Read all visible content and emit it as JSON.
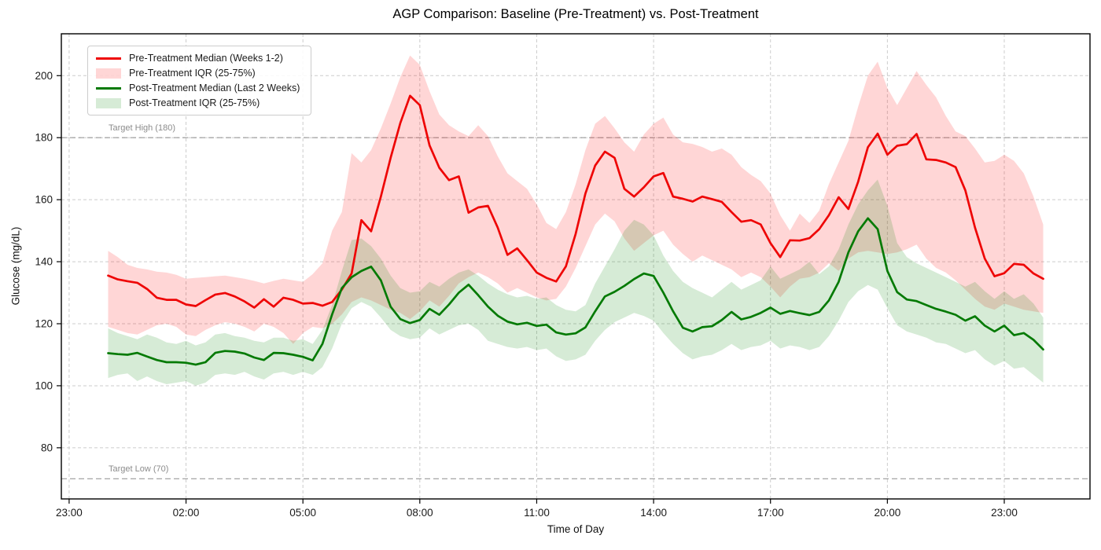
{
  "chart_data": {
    "type": "line",
    "subtype": "median-lines-with-iqr-bands",
    "title": "AGP Comparison: Baseline (Pre-Treatment) vs. Post-Treatment",
    "xlabel": "Time of Day",
    "ylabel": "Glucose (mg/dL)",
    "x_tick_labels": [
      "23:00",
      "02:00",
      "05:00",
      "08:00",
      "11:00",
      "14:00",
      "17:00",
      "20:00",
      "23:00"
    ],
    "x_tick_hours": [
      -1,
      2,
      5,
      8,
      11,
      14,
      17,
      20,
      23
    ],
    "y_ticks": [
      80,
      100,
      120,
      140,
      160,
      180,
      200
    ],
    "xlim_hours": [
      -1.2,
      25.2
    ],
    "ylim": [
      63.5,
      213.5
    ],
    "grid": true,
    "legend_position": "upper-left",
    "x_hours_start": 0,
    "x_hours_step": 0.25,
    "n_points": 97,
    "reference_lines": [
      {
        "label": "Target High",
        "y": 180
      },
      {
        "label": "Target Low",
        "y": 70
      }
    ],
    "annotations": [
      {
        "text": "Target High (180)",
        "y": 180
      },
      {
        "text": "Target Low (70)",
        "y": 70
      }
    ],
    "colors": {
      "pre_line": "#ee0505",
      "pre_fill": "rgba(255,0,0,0.16)",
      "post_line": "#047a04",
      "post_fill": "rgba(0,128,0,0.16)",
      "grid": "#cccccc",
      "target_line": "#9a9a9a",
      "tick_text": "#1a1a1a",
      "annotation_text": "#8c8c8c",
      "spine": "#000000"
    },
    "series": [
      {
        "name": "Pre-Treatment Median (Weeks 1-2)",
        "type": "line",
        "color_key": "pre_line",
        "values": [
          135.5,
          134.3,
          133.7,
          133.2,
          131.2,
          128.4,
          127.7,
          127.7,
          126.2,
          125.7,
          127.6,
          129.4,
          129.9,
          128.8,
          127.2,
          125.2,
          127.9,
          125.5,
          128.4,
          127.7,
          126.5,
          126.7,
          125.8,
          127.0,
          131.0,
          136.2,
          153.4,
          149.8,
          161.0,
          173.5,
          184.7,
          193.5,
          190.5,
          177.5,
          170.3,
          166.3,
          167.5,
          155.8,
          157.5,
          158.0,
          151.0,
          142.2,
          144.3,
          140.5,
          136.5,
          134.8,
          133.6,
          138.5,
          149.0,
          162.0,
          171.0,
          175.5,
          173.5,
          163.5,
          161.0,
          164.0,
          167.5,
          168.6,
          161.0,
          160.3,
          159.4,
          161.0,
          160.2,
          159.3,
          156.0,
          152.9,
          153.4,
          152.0,
          146.0,
          141.5,
          146.9,
          146.8,
          147.6,
          150.5,
          155.0,
          160.8,
          157.0,
          165.8,
          176.9,
          181.3,
          174.5,
          177.4,
          177.9,
          181.2,
          173.0,
          172.8,
          172.0,
          170.5,
          163.0,
          151.0,
          141.0,
          135.3,
          136.3,
          139.3,
          139.0,
          136.2,
          134.5
        ]
      },
      {
        "name": "Pre-Treatment IQR (25-75%)",
        "type": "band",
        "color_key": "pre_fill",
        "lower": [
          119.0,
          118.0,
          117.0,
          116.5,
          118.0,
          119.5,
          120.0,
          119.0,
          116.5,
          116.0,
          118.0,
          119.5,
          120.5,
          120.0,
          119.0,
          117.5,
          120.0,
          119.0,
          117.0,
          113.5,
          117.0,
          119.0,
          118.5,
          120.0,
          123.0,
          127.0,
          128.5,
          127.5,
          126.0,
          124.5,
          123.5,
          121.5,
          124.0,
          127.5,
          125.5,
          129.0,
          133.0,
          135.0,
          136.5,
          135.0,
          133.0,
          130.0,
          131.5,
          130.0,
          128.5,
          127.5,
          128.0,
          132.0,
          138.0,
          145.0,
          152.0,
          155.5,
          153.0,
          147.5,
          143.5,
          146.0,
          148.5,
          150.0,
          145.5,
          142.5,
          140.0,
          142.0,
          140.5,
          139.0,
          137.5,
          135.0,
          136.5,
          135.0,
          132.0,
          128.5,
          132.0,
          134.5,
          135.0,
          136.5,
          139.5,
          137.0,
          141.0,
          143.0,
          143.5,
          143.0,
          142.5,
          143.0,
          144.0,
          145.5,
          141.0,
          138.0,
          136.5,
          134.0,
          131.0,
          128.0,
          125.5,
          124.5,
          126.5,
          125.5,
          124.5,
          124.0,
          123.5
        ],
        "upper": [
          143.5,
          141.5,
          139.0,
          138.0,
          137.5,
          136.8,
          136.5,
          135.8,
          134.5,
          134.8,
          135.0,
          135.3,
          135.5,
          135.0,
          134.5,
          133.8,
          133.0,
          133.8,
          134.5,
          134.0,
          133.5,
          136.0,
          139.5,
          150.0,
          156.0,
          175.0,
          172.0,
          176.0,
          183.0,
          191.0,
          199.5,
          206.5,
          203.5,
          195.0,
          187.5,
          184.0,
          182.0,
          180.5,
          184.0,
          180.5,
          174.0,
          168.5,
          166.0,
          163.5,
          158.5,
          152.5,
          150.5,
          156.0,
          165.0,
          176.0,
          184.5,
          187.0,
          183.0,
          178.5,
          175.5,
          181.0,
          184.5,
          186.5,
          181.0,
          178.5,
          178.0,
          177.0,
          175.5,
          176.5,
          174.5,
          170.5,
          168.0,
          166.0,
          162.0,
          155.0,
          150.0,
          155.5,
          152.5,
          156.5,
          165.0,
          172.0,
          179.0,
          190.0,
          200.0,
          204.5,
          196.0,
          190.5,
          196.0,
          201.5,
          197.0,
          193.0,
          187.0,
          182.0,
          180.5,
          176.5,
          172.0,
          172.5,
          174.5,
          172.5,
          168.5,
          161.0,
          152.0
        ]
      },
      {
        "name": "Post-Treatment Median (Last 2 Weeks)",
        "type": "line",
        "color_key": "post_line",
        "values": [
          110.5,
          110.2,
          110.0,
          110.6,
          109.4,
          108.3,
          107.6,
          107.6,
          107.4,
          106.8,
          107.6,
          110.6,
          111.2,
          111.0,
          110.4,
          109.1,
          108.3,
          110.6,
          110.5,
          110.0,
          109.3,
          108.2,
          113.5,
          123.0,
          131.5,
          135.0,
          137.0,
          138.4,
          134.0,
          125.5,
          121.5,
          120.2,
          121.2,
          124.8,
          122.9,
          126.2,
          130.0,
          132.6,
          129.2,
          125.5,
          122.6,
          120.7,
          119.8,
          120.3,
          119.3,
          119.7,
          117.2,
          116.5,
          116.9,
          118.8,
          124.0,
          128.8,
          130.3,
          132.2,
          134.4,
          136.2,
          135.4,
          130.0,
          124.0,
          118.7,
          117.5,
          118.9,
          119.2,
          121.2,
          123.8,
          121.4,
          122.2,
          123.5,
          125.2,
          123.2,
          124.1,
          123.4,
          122.8,
          123.8,
          127.5,
          133.5,
          143.0,
          149.8,
          154.0,
          150.5,
          137.0,
          130.2,
          127.8,
          127.3,
          126.0,
          124.8,
          123.9,
          122.9,
          121.0,
          122.4,
          119.4,
          117.5,
          119.4,
          116.3,
          117.0,
          114.8,
          111.7
        ]
      },
      {
        "name": "Post-Treatment IQR (25-75%)",
        "type": "band",
        "color_key": "post_fill",
        "lower": [
          102.5,
          103.5,
          104.0,
          101.5,
          103.0,
          101.5,
          100.5,
          101.0,
          101.5,
          100.0,
          101.0,
          103.5,
          104.0,
          103.5,
          104.5,
          103.0,
          102.0,
          104.0,
          104.5,
          103.5,
          104.5,
          103.5,
          106.0,
          112.0,
          120.0,
          125.0,
          127.0,
          125.5,
          122.0,
          118.0,
          116.0,
          115.0,
          115.5,
          118.5,
          116.5,
          118.0,
          119.5,
          120.0,
          118.0,
          114.5,
          113.5,
          112.5,
          112.0,
          112.5,
          111.5,
          112.0,
          109.5,
          108.0,
          108.5,
          110.0,
          114.5,
          118.0,
          120.5,
          122.0,
          123.5,
          122.5,
          121.0,
          117.0,
          113.5,
          110.5,
          108.5,
          109.5,
          110.0,
          111.5,
          113.5,
          111.5,
          112.5,
          113.0,
          114.5,
          112.0,
          113.0,
          112.5,
          111.5,
          112.5,
          116.0,
          121.0,
          127.0,
          130.5,
          132.5,
          131.0,
          125.0,
          119.5,
          117.5,
          116.5,
          115.5,
          114.0,
          113.5,
          112.0,
          110.5,
          111.5,
          108.5,
          106.5,
          108.0,
          105.5,
          106.0,
          103.5,
          101.0
        ],
        "upper": [
          118.5,
          117.0,
          116.0,
          115.0,
          116.5,
          115.5,
          114.0,
          113.5,
          114.5,
          113.0,
          114.0,
          116.5,
          117.0,
          116.0,
          115.5,
          114.5,
          114.0,
          115.5,
          115.5,
          114.5,
          115.0,
          113.5,
          118.0,
          126.0,
          137.0,
          147.0,
          147.5,
          145.0,
          141.0,
          135.5,
          131.5,
          130.0,
          130.5,
          133.5,
          132.0,
          134.5,
          136.5,
          137.5,
          135.5,
          133.0,
          131.0,
          129.5,
          128.5,
          129.0,
          128.0,
          128.5,
          126.0,
          124.5,
          124.0,
          126.0,
          133.0,
          138.5,
          144.0,
          150.0,
          153.5,
          152.0,
          148.5,
          142.0,
          137.0,
          133.5,
          131.5,
          130.0,
          128.5,
          131.0,
          133.5,
          131.0,
          132.5,
          134.0,
          138.5,
          134.5,
          136.0,
          137.5,
          140.0,
          136.0,
          138.5,
          144.0,
          152.0,
          158.5,
          163.0,
          166.5,
          158.0,
          146.0,
          141.5,
          139.5,
          138.0,
          136.5,
          135.0,
          133.5,
          132.0,
          133.5,
          130.5,
          128.0,
          130.5,
          128.0,
          129.5,
          126.5,
          122.0
        ]
      }
    ]
  }
}
